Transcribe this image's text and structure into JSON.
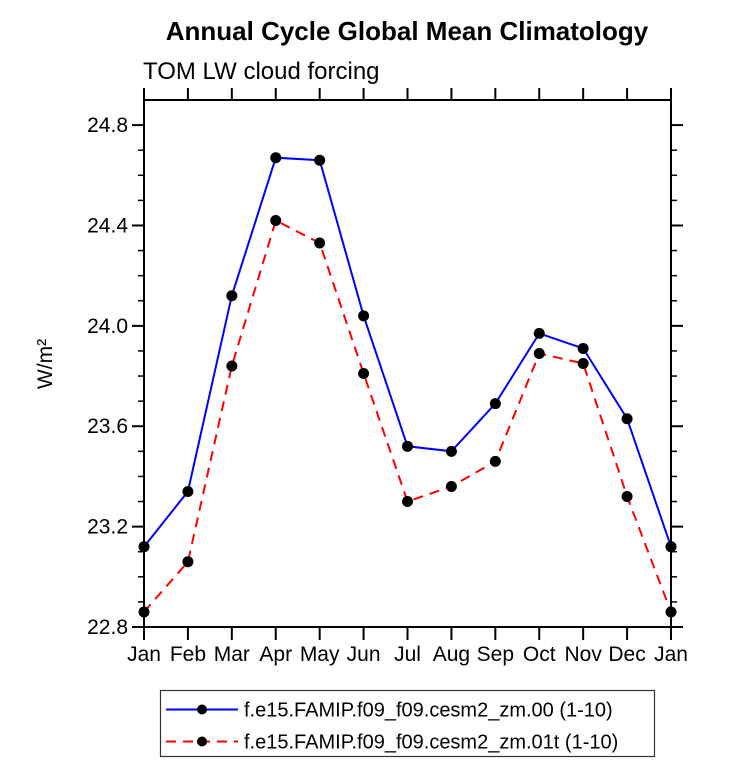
{
  "chart_data": {
    "type": "line",
    "title": "Annual Cycle Global Mean Climatology",
    "subtitle": "TOM LW cloud forcing",
    "ylabel": "W/m²",
    "xlabel": "",
    "x_categories": [
      "Jan",
      "Feb",
      "Mar",
      "Apr",
      "May",
      "Jun",
      "Jul",
      "Aug",
      "Sep",
      "Oct",
      "Nov",
      "Dec",
      "Jan"
    ],
    "ylim": [
      22.8,
      24.9
    ],
    "y_major_ticks": [
      22.8,
      23.2,
      23.6,
      24.0,
      24.4,
      24.8
    ],
    "y_minor_step": 0.1,
    "grid": false,
    "legend_position": "bottom-center",
    "series": [
      {
        "name": "f.e15.FAMIP.f09_f09.cesm2_zm.00 (1-10)",
        "color": "#0000ff",
        "line_style": "solid",
        "marker": "filled-circle",
        "marker_color": "#000000",
        "values": [
          23.12,
          23.34,
          24.12,
          24.67,
          24.66,
          24.04,
          23.52,
          23.5,
          23.69,
          23.97,
          23.91,
          23.63,
          23.12
        ]
      },
      {
        "name": "f.e15.FAMIP.f09_f09.cesm2_zm.01t (1-10)",
        "color": "#ff0000",
        "line_style": "dashed",
        "marker": "filled-circle",
        "marker_color": "#000000",
        "values": [
          22.86,
          23.06,
          23.84,
          24.42,
          24.33,
          23.81,
          23.3,
          23.36,
          23.46,
          23.89,
          23.85,
          23.32,
          22.86
        ]
      }
    ],
    "axis_color": "#000000",
    "legend_border_color": "#333333"
  }
}
